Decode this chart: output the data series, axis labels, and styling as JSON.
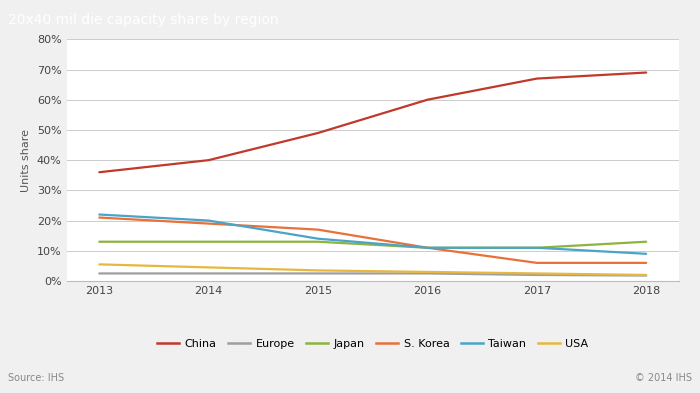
{
  "title": "20x40 mil die capacity share by region",
  "ylabel": "Units share",
  "source_left": "Source: IHS",
  "source_right": "© 2014 IHS",
  "years": [
    2013,
    2014,
    2015,
    2016,
    2017,
    2018
  ],
  "series": {
    "China": {
      "color": "#c0392b",
      "data": [
        36,
        40,
        49,
        60,
        67,
        69
      ]
    },
    "Europe": {
      "color": "#9e9e9e",
      "data": [
        2.5,
        2.5,
        2.5,
        2.5,
        2.0,
        1.8
      ]
    },
    "Japan": {
      "color": "#8db441",
      "data": [
        13,
        13,
        13,
        11,
        11,
        13
      ]
    },
    "S. Korea": {
      "color": "#e8703a",
      "data": [
        21,
        19,
        17,
        11,
        6,
        6
      ]
    },
    "Taiwan": {
      "color": "#4aa3c8",
      "data": [
        22,
        20,
        14,
        11,
        11,
        9
      ]
    },
    "USA": {
      "color": "#e6b840",
      "data": [
        5.5,
        4.5,
        3.5,
        3.0,
        2.5,
        2.0
      ]
    }
  },
  "ylim": [
    0,
    80
  ],
  "yticks": [
    0,
    10,
    20,
    30,
    40,
    50,
    60,
    70,
    80
  ],
  "ytick_labels": [
    "0%",
    "10%",
    "20%",
    "30%",
    "40%",
    "50%",
    "60%",
    "70%",
    "80%"
  ],
  "header_bg_color": "#6b7b84",
  "header_text_color": "#ffffff",
  "outer_bg_color": "#f0f0f0",
  "plot_bg_color": "#ffffff",
  "grid_color": "#cccccc",
  "title_fontsize": 10,
  "legend_fontsize": 8,
  "axis_label_fontsize": 8,
  "tick_fontsize": 8
}
